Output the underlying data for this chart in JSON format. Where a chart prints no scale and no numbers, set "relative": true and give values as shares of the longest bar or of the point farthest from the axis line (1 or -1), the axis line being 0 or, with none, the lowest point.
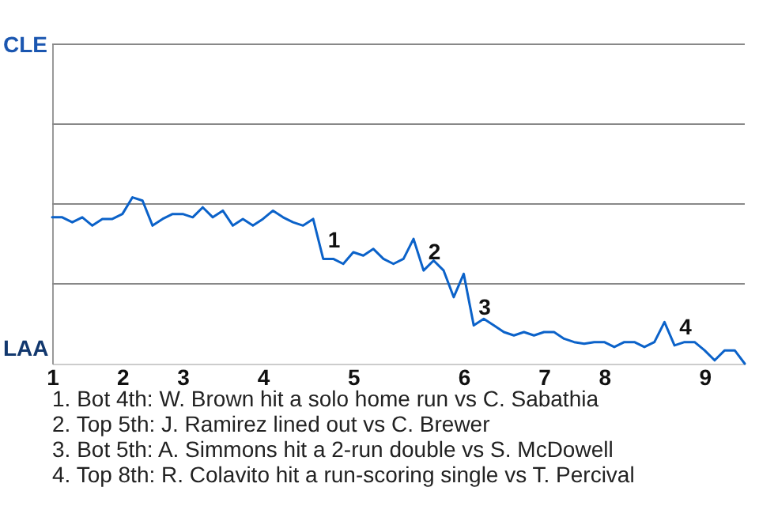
{
  "chart_data": {
    "type": "line",
    "relative": true,
    "categories": [
      "1",
      null,
      null,
      null,
      null,
      null,
      null,
      "2",
      null,
      null,
      null,
      null,
      null,
      "3",
      null,
      null,
      null,
      null,
      null,
      null,
      null,
      "4",
      null,
      null,
      null,
      null,
      null,
      null,
      null,
      null,
      "5",
      null,
      null,
      null,
      null,
      null,
      null,
      null,
      null,
      null,
      null,
      "6",
      null,
      null,
      null,
      null,
      null,
      null,
      null,
      "7",
      null,
      null,
      null,
      null,
      null,
      "8",
      null,
      null,
      null,
      null,
      null,
      null,
      null,
      null,
      null,
      "9",
      null,
      null,
      null,
      null
    ],
    "series": [
      {
        "color": "#0b62c9",
        "values": [
          0.88,
          0.88,
          0.85,
          0.88,
          0.83,
          0.87,
          0.87,
          0.9,
          1,
          0.98,
          0.83,
          0.87,
          0.9,
          0.9,
          0.88,
          0.94,
          0.88,
          0.92,
          0.83,
          0.87,
          0.83,
          0.87,
          0.92,
          0.88,
          0.85,
          0.83,
          0.87,
          0.63,
          0.63,
          0.6,
          0.67,
          0.65,
          0.69,
          0.63,
          0.6,
          0.63,
          0.75,
          0.56,
          0.62,
          0.56,
          0.4,
          0.54,
          0.23,
          0.27,
          0.23,
          0.19,
          0.17,
          0.19,
          0.17,
          0.19,
          0.19,
          0.15,
          0.13,
          0.12,
          0.13,
          0.13,
          0.1,
          0.13,
          0.13,
          0.1,
          0.13,
          0.25,
          0.11,
          0.13,
          0.13,
          0.08,
          0.02,
          0.08,
          0.08,
          0
        ]
      }
    ],
    "ref_lines": [
      {
        "axis": "y",
        "value": 0.48,
        "color": "#888888"
      },
      {
        "axis": "y",
        "value": 0.96,
        "color": "#888888"
      },
      {
        "axis": "y",
        "value": 1.44,
        "color": "#888888"
      },
      {
        "axis": "y",
        "value": 1.92,
        "color": "#888888"
      }
    ],
    "annotations": [
      "CLE",
      "LAA",
      {
        "text": "1",
        "y": 0.63
      },
      {
        "text": "2",
        "y": 0.56
      },
      {
        "text": "3",
        "y": 0.23
      },
      {
        "text": "4",
        "y": 0.11
      },
      "1. Bot 4th: W. Brown hit a solo home run vs C. Sabathia",
      "2. Top 5th: J. Ramirez lined out vs C. Brewer",
      "3. Bot 5th: A. Simmons hit a 2-run double vs S. McDowell",
      "4. Top 8th: R. Colavito hit a run-scoring single vs T. Percival"
    ]
  }
}
